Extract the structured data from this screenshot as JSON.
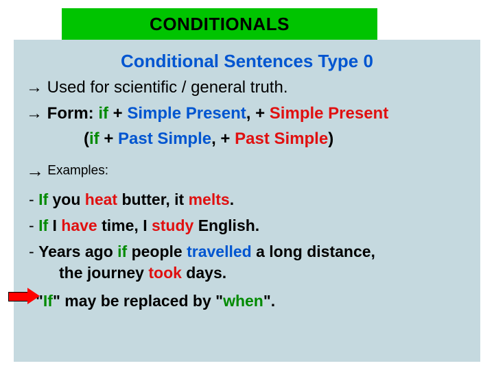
{
  "colors": {
    "title_bg": "#00c400",
    "content_bg": "#c5d9df",
    "highlight_green": "#008a00",
    "highlight_blue": "#0055d0",
    "highlight_red": "#e01010",
    "text": "#000000",
    "arrow_fill": "#ff0000"
  },
  "title": "CONDITIONALS",
  "subtitle": "Conditional Sentences Type 0",
  "usage_arrow": "→",
  "usage_text": " Used for scientific / general truth.",
  "form_arrow": "→",
  "form_label": " Form: ",
  "form_if": "if",
  "form_sep1": " + ",
  "form_sp1": "Simple Present",
  "form_comma1": ", + ",
  "form_sp2": "Simple Present",
  "form2_open": "(",
  "form2_if": "if",
  "form2_sep1": " + ",
  "form2_ps1": "Past Simple",
  "form2_comma1": ", + ",
  "form2_ps2": "Past Simple",
  "form2_close": ")",
  "examples_arrow": "→",
  "examples_label": "  Examples:",
  "ex1_dash": "-     ",
  "ex1_if": "If",
  "ex1_a": " you ",
  "ex1_heat": "heat",
  "ex1_b": " butter, it ",
  "ex1_melts": "melts",
  "ex1_end": ".",
  "ex2_dash": " - ",
  "ex2_if": "If",
  "ex2_a": " I ",
  "ex2_have": "have",
  "ex2_b": " time, I ",
  "ex2_study": "study",
  "ex2_c": " English.",
  "ex3_dash": " - ",
  "ex3_a": "Years ago ",
  "ex3_if": "if",
  "ex3_b": " people ",
  "ex3_trav": "travelled",
  "ex3_c": " a long distance,",
  "ex3_d": "the journey ",
  "ex3_took": "took",
  "ex3_e": " days.",
  "note_open": "\"",
  "note_if": "If",
  "note_mid": "\" may be replaced by \"",
  "note_when": "when",
  "note_close": "\"."
}
